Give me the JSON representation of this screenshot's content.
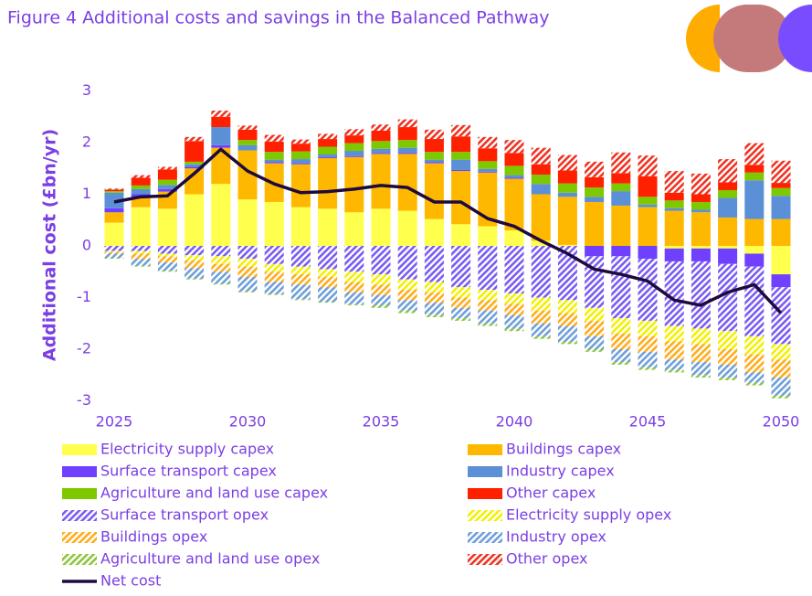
{
  "chart_data": {
    "type": "stacked-bar-line",
    "title": "Figure 4 Additional costs and savings in the Balanced Pathway",
    "y_label": "Additional cost (£bn/yr)",
    "categories": [
      "2025",
      null,
      null,
      null,
      null,
      "2030",
      null,
      null,
      null,
      null,
      "2035",
      null,
      null,
      null,
      null,
      "2040",
      null,
      null,
      null,
      null,
      "2045",
      null,
      null,
      null,
      null,
      "2050"
    ],
    "ylim": [
      -3,
      3
    ],
    "yticks": [
      -3,
      -2,
      -1,
      0,
      1,
      2,
      3
    ],
    "grid": false,
    "series": [
      {
        "name": "Electricity supply capex",
        "color": "#ffff4d",
        "hatch": false,
        "values": [
          0.45,
          0.75,
          0.72,
          1.0,
          1.2,
          0.9,
          0.85,
          0.75,
          0.72,
          0.65,
          0.72,
          0.68,
          0.52,
          0.42,
          0.38,
          0.3,
          0.1,
          0.02,
          0,
          0,
          0,
          -0.05,
          -0.05,
          -0.05,
          -0.15,
          -0.55
        ]
      },
      {
        "name": "Buildings capex",
        "color": "#ffb800",
        "hatch": false,
        "values": [
          0.2,
          0.2,
          0.33,
          0.5,
          0.7,
          0.95,
          0.75,
          0.83,
          0.98,
          1.07,
          1.06,
          1.1,
          1.08,
          1.03,
          1.04,
          1.0,
          0.9,
          0.93,
          0.85,
          0.78,
          0.75,
          0.68,
          0.65,
          0.55,
          0.52,
          0.52
        ]
      },
      {
        "name": "Surface transport capex",
        "color": "#7040ff",
        "hatch": false,
        "values": [
          0.08,
          0.05,
          0.05,
          0.03,
          0.05,
          0,
          0.02,
          0.02,
          0.02,
          0.02,
          0.02,
          0.02,
          0.02,
          0.02,
          0.02,
          0.02,
          0,
          0,
          -0.2,
          -0.2,
          -0.25,
          -0.25,
          -0.25,
          -0.3,
          -0.25,
          -0.25
        ]
      },
      {
        "name": "Industry capex",
        "color": "#5b8fd6",
        "hatch": false,
        "values": [
          0.3,
          0.1,
          0.08,
          0.05,
          0.35,
          0.1,
          0.05,
          0.08,
          0.05,
          0.1,
          0.08,
          0.1,
          0.05,
          0.2,
          0.05,
          0.05,
          0.2,
          0.08,
          0.1,
          0.28,
          0.05,
          0.05,
          0.05,
          0.38,
          0.75,
          0.45
        ]
      },
      {
        "name": "Agriculture and land use capex",
        "color": "#7ec800",
        "hatch": false,
        "values": [
          0.03,
          0.07,
          0.1,
          0.05,
          0,
          0.1,
          0.15,
          0.15,
          0.15,
          0.15,
          0.15,
          0.15,
          0.15,
          0.15,
          0.15,
          0.18,
          0.18,
          0.18,
          0.18,
          0.15,
          0.15,
          0.15,
          0.15,
          0.15,
          0.15,
          0.15
        ]
      },
      {
        "name": "Other capex",
        "color": "#ff2000",
        "hatch": false,
        "values": [
          0.03,
          0.15,
          0.2,
          0.4,
          0.2,
          0.2,
          0.2,
          0.15,
          0.15,
          0.15,
          0.2,
          0.25,
          0.25,
          0.3,
          0.25,
          0.25,
          0.2,
          0.25,
          0.2,
          0.2,
          0.4,
          0.15,
          0.15,
          0.15,
          0.15,
          0.1
        ]
      },
      {
        "name": "Surface transport opex",
        "color": "#7a5cf0",
        "hatch": true,
        "values": [
          -0.1,
          -0.1,
          -0.15,
          -0.18,
          -0.2,
          -0.25,
          -0.35,
          -0.4,
          -0.45,
          -0.5,
          -0.55,
          -0.65,
          -0.7,
          -0.8,
          -0.85,
          -0.92,
          -1.0,
          -1.05,
          -1.0,
          -1.2,
          -1.2,
          -1.25,
          -1.3,
          -1.3,
          -1.35,
          -1.1
        ]
      },
      {
        "name": "Electricity supply opex",
        "color": "#f2f000",
        "hatch": true,
        "values": [
          -0.02,
          -0.05,
          -0.05,
          -0.1,
          -0.15,
          -0.15,
          -0.15,
          -0.15,
          -0.15,
          -0.2,
          -0.2,
          -0.2,
          -0.2,
          -0.2,
          -0.2,
          -0.2,
          -0.25,
          -0.25,
          -0.25,
          -0.3,
          -0.3,
          -0.3,
          -0.3,
          -0.35,
          -0.35,
          -0.3
        ]
      },
      {
        "name": "Buildings opex",
        "color": "#ffac1c",
        "hatch": true,
        "values": [
          -0.03,
          -0.1,
          -0.12,
          -0.15,
          -0.15,
          -0.2,
          -0.2,
          -0.2,
          -0.2,
          -0.2,
          -0.2,
          -0.2,
          -0.2,
          -0.2,
          -0.2,
          -0.22,
          -0.25,
          -0.25,
          -0.3,
          -0.3,
          -0.3,
          -0.35,
          -0.35,
          -0.3,
          -0.35,
          -0.35
        ]
      },
      {
        "name": "Industry opex",
        "color": "#6f9fd8",
        "hatch": true,
        "values": [
          -0.08,
          -0.13,
          -0.16,
          -0.2,
          -0.23,
          -0.28,
          -0.23,
          -0.28,
          -0.28,
          -0.23,
          -0.2,
          -0.2,
          -0.23,
          -0.2,
          -0.25,
          -0.26,
          -0.25,
          -0.3,
          -0.25,
          -0.25,
          -0.3,
          -0.2,
          -0.25,
          -0.25,
          -0.2,
          -0.35
        ]
      },
      {
        "name": "Agriculture and land use opex",
        "color": "#8cc63f",
        "hatch": true,
        "values": [
          -0.02,
          -0.02,
          -0.02,
          -0.02,
          -0.02,
          -0.02,
          -0.02,
          -0.02,
          -0.02,
          -0.02,
          -0.05,
          -0.05,
          -0.05,
          -0.05,
          -0.05,
          -0.05,
          -0.05,
          -0.05,
          -0.05,
          -0.05,
          -0.05,
          -0.05,
          -0.05,
          -0.05,
          -0.05,
          -0.05
        ]
      },
      {
        "name": "Other opex",
        "color": "#ee3322",
        "hatch": true,
        "values": [
          0.02,
          0.05,
          0.05,
          0.08,
          0.12,
          0.08,
          0.13,
          0.08,
          0.1,
          0.12,
          0.12,
          0.15,
          0.18,
          0.22,
          0.22,
          0.25,
          0.32,
          0.3,
          0.3,
          0.4,
          0.4,
          0.42,
          0.4,
          0.45,
          0.42,
          0.43
        ]
      }
    ],
    "line": {
      "name": "Net cost",
      "color": "#1e0a3c",
      "values": [
        0.85,
        0.95,
        0.97,
        1.4,
        1.87,
        1.45,
        1.2,
        1.03,
        1.05,
        1.1,
        1.17,
        1.13,
        0.85,
        0.85,
        0.53,
        0.38,
        0.1,
        -0.15,
        -0.45,
        -0.55,
        -0.68,
        -1.05,
        -1.15,
        -0.9,
        -0.75,
        -1.3
      ]
    }
  }
}
